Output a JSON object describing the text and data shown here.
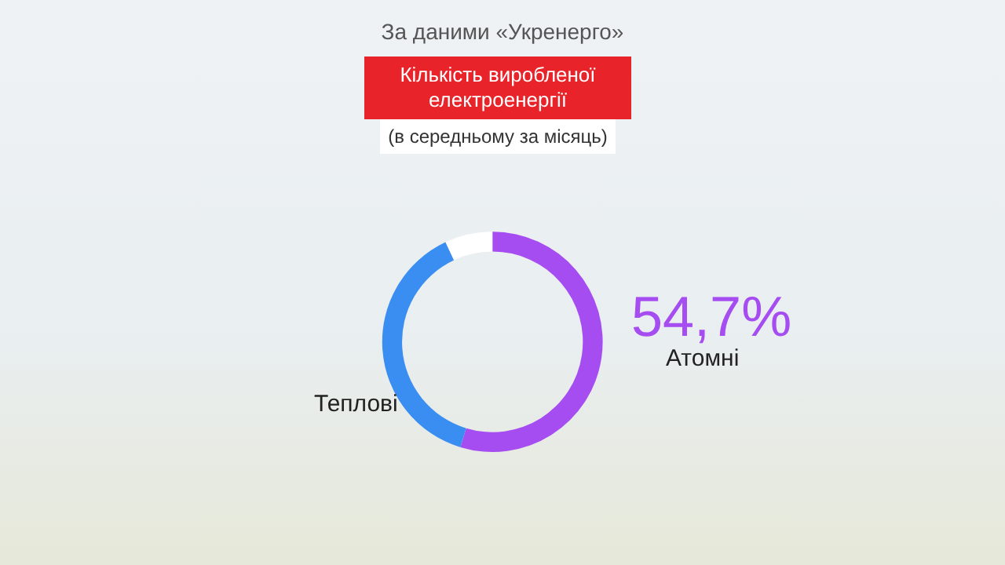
{
  "chart_data": {
    "type": "donut",
    "title": "Кількість виробленої електроенергії",
    "subtitle": "(в середньому за місяць)",
    "annotations": [
      "За даними «Укренерго»"
    ],
    "categories": [
      "Атомні",
      "Теплові",
      null
    ],
    "values": [
      54.7,
      38.3,
      7
    ],
    "value_labels": [
      "54,7%",
      null,
      null
    ],
    "colors": [
      "#a64df2",
      "#3a8ef2",
      "#ffffff"
    ],
    "legend": false
  }
}
